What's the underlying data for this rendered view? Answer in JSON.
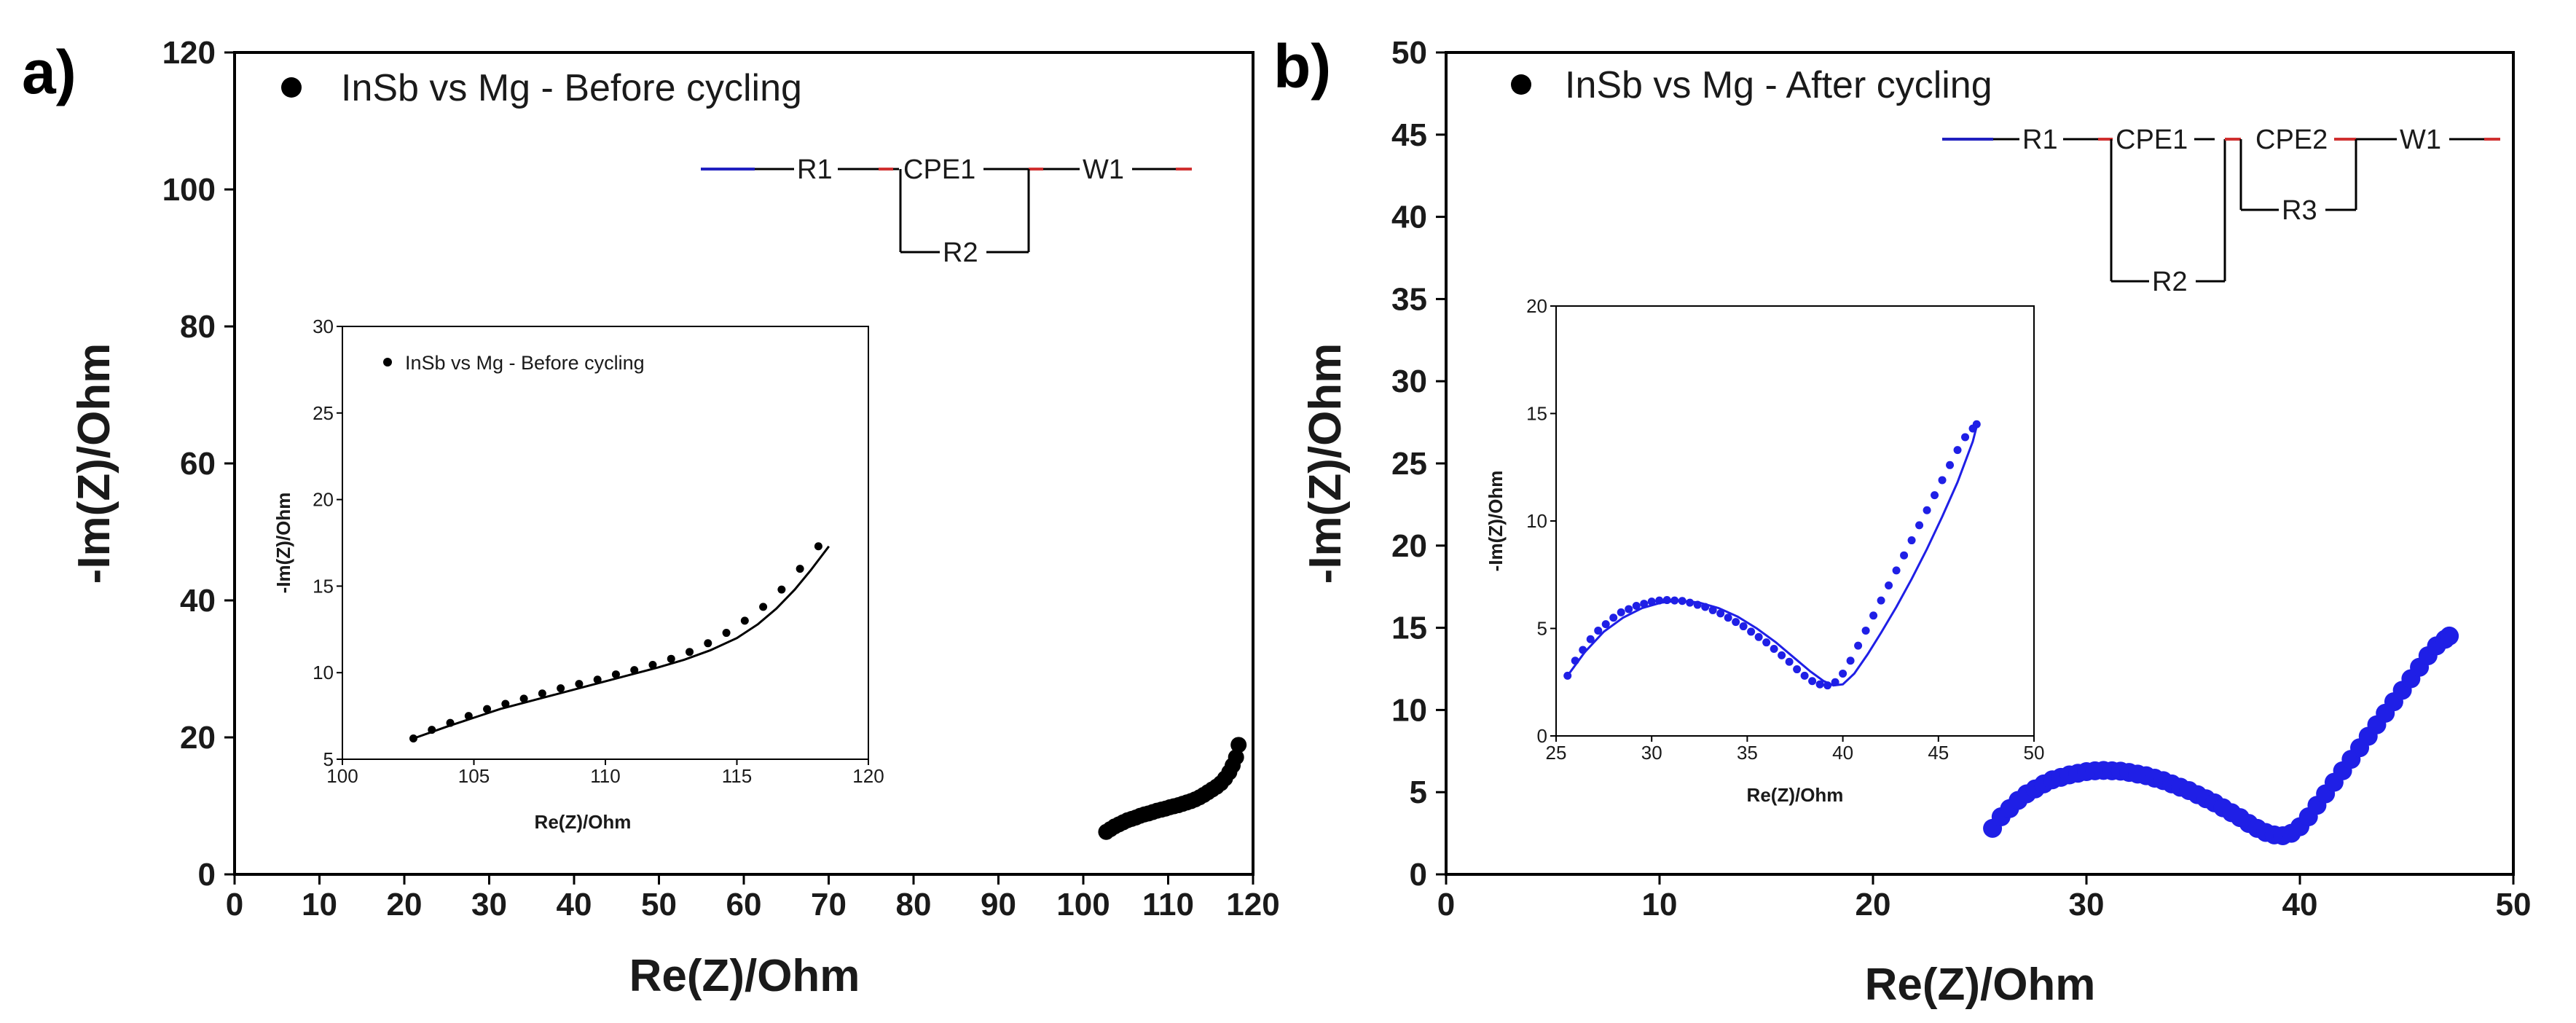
{
  "chart_data": [
    {
      "panel": "a)",
      "type": "scatter",
      "legend": "InSb vs Mg - Before cycling",
      "legend_position": "top-left",
      "xlabel": "Re(Z)/Ohm",
      "ylabel": "-Im(Z)/Ohm",
      "xlim": [
        0,
        120
      ],
      "ylim": [
        0,
        120
      ],
      "xticks": [
        0,
        10,
        20,
        30,
        40,
        50,
        60,
        70,
        80,
        90,
        100,
        110,
        120
      ],
      "yticks": [
        0,
        20,
        40,
        60,
        80,
        100,
        120
      ],
      "marker_color": "#000000",
      "circuit": [
        "R1",
        "CPE1",
        "W1",
        "R2"
      ],
      "series": [
        {
          "name": "data",
          "x": [
            102.7,
            103.2,
            103.7,
            104.2,
            104.7,
            105.2,
            105.7,
            106.2,
            106.7,
            107.2,
            107.7,
            108.2,
            108.7,
            109.2,
            109.7,
            110.2,
            110.7,
            111.2,
            111.7,
            112.2,
            112.7,
            113.2,
            113.7,
            114.2,
            114.7,
            115.2,
            115.7,
            116.2,
            116.7,
            117.2,
            117.6,
            118.0,
            118.3
          ],
          "y": [
            6.2,
            6.6,
            7.0,
            7.3,
            7.6,
            7.9,
            8.1,
            8.3,
            8.55,
            8.75,
            8.9,
            9.1,
            9.3,
            9.45,
            9.6,
            9.8,
            9.95,
            10.1,
            10.3,
            10.5,
            10.7,
            10.95,
            11.25,
            11.6,
            12.0,
            12.4,
            12.8,
            13.3,
            14.0,
            14.9,
            15.9,
            17.1,
            18.9
          ]
        }
      ],
      "inset": {
        "legend": "InSb vs Mg - Before cycling",
        "xlabel": "Re(Z)/Ohm",
        "ylabel": "-Im(Z)/Ohm",
        "xlim": [
          100,
          120
        ],
        "ylim": [
          5,
          30
        ],
        "xticks": [
          100,
          105,
          110,
          115,
          120
        ],
        "yticks": [
          5,
          10,
          15,
          20,
          25,
          30
        ],
        "series": [
          {
            "name": "data",
            "x": [
              102.7,
              103.4,
              104.1,
              104.8,
              105.5,
              106.2,
              106.9,
              107.6,
              108.3,
              109.0,
              109.7,
              110.4,
              111.1,
              111.8,
              112.5,
              113.2,
              113.9,
              114.6,
              115.3,
              116.0,
              116.7,
              117.4,
              118.1
            ],
            "y": [
              6.2,
              6.7,
              7.1,
              7.5,
              7.9,
              8.2,
              8.5,
              8.8,
              9.1,
              9.35,
              9.6,
              9.9,
              10.15,
              10.45,
              10.8,
              11.2,
              11.7,
              12.3,
              13.0,
              13.8,
              14.8,
              16.0,
              17.3
            ]
          },
          {
            "name": "fit",
            "x": [
              102.7,
              104,
              105,
              106,
              107,
              108,
              109,
              110,
              111,
              112,
              113,
              114,
              115,
              115.8,
              116.5,
              117.2,
              117.8,
              118.5
            ],
            "y": [
              6.2,
              6.9,
              7.4,
              7.9,
              8.3,
              8.7,
              9.1,
              9.5,
              9.9,
              10.3,
              10.75,
              11.3,
              12.0,
              12.8,
              13.7,
              14.8,
              15.9,
              17.3
            ]
          }
        ]
      }
    },
    {
      "panel": "b)",
      "type": "scatter",
      "legend": "InSb vs Mg - After cycling",
      "legend_position": "top-left",
      "xlabel": "Re(Z)/Ohm",
      "ylabel": "-Im(Z)/Ohm",
      "xlim": [
        0,
        50
      ],
      "ylim": [
        0,
        50
      ],
      "xticks": [
        0,
        10,
        20,
        30,
        40,
        50
      ],
      "yticks": [
        0,
        5,
        10,
        15,
        20,
        25,
        30,
        35,
        40,
        45,
        50
      ],
      "marker_color": "#1f1fe6",
      "circuit": [
        "R1",
        "CPE1",
        "CPE2",
        "W1",
        "R3",
        "R2"
      ],
      "series": [
        {
          "name": "data",
          "x": [
            25.6,
            26.0,
            26.4,
            26.8,
            27.2,
            27.6,
            28.0,
            28.4,
            28.8,
            29.2,
            29.6,
            30.0,
            30.4,
            30.8,
            31.2,
            31.6,
            32.0,
            32.4,
            32.8,
            33.2,
            33.6,
            34.0,
            34.4,
            34.8,
            35.2,
            35.6,
            36.0,
            36.4,
            36.8,
            37.2,
            37.6,
            38.0,
            38.4,
            38.8,
            39.2,
            39.6,
            40.0,
            40.4,
            40.8,
            41.2,
            41.6,
            42.0,
            42.4,
            42.8,
            43.2,
            43.6,
            44.0,
            44.4,
            44.8,
            45.2,
            45.6,
            46.0,
            46.4,
            46.8,
            47.0
          ],
          "y": [
            2.8,
            3.5,
            4.0,
            4.5,
            4.9,
            5.2,
            5.5,
            5.75,
            5.9,
            6.05,
            6.15,
            6.25,
            6.3,
            6.32,
            6.3,
            6.28,
            6.2,
            6.1,
            6.0,
            5.85,
            5.7,
            5.5,
            5.3,
            5.1,
            4.85,
            4.6,
            4.35,
            4.05,
            3.75,
            3.45,
            3.1,
            2.8,
            2.55,
            2.4,
            2.35,
            2.5,
            2.9,
            3.5,
            4.2,
            4.9,
            5.6,
            6.3,
            7.0,
            7.7,
            8.4,
            9.1,
            9.8,
            10.5,
            11.2,
            11.9,
            12.6,
            13.3,
            13.9,
            14.3,
            14.5
          ]
        }
      ],
      "inset": {
        "xlabel": "Re(Z)/Ohm",
        "ylabel": "-Im(Z)/Ohm",
        "xlim": [
          25,
          50
        ],
        "ylim": [
          0,
          20
        ],
        "xticks": [
          25,
          30,
          35,
          40,
          45,
          50
        ],
        "yticks": [
          0,
          5,
          10,
          15,
          20
        ],
        "series": [
          {
            "name": "data",
            "x": [
              25.6,
              26.0,
              26.4,
              26.8,
              27.2,
              27.6,
              28.0,
              28.4,
              28.8,
              29.2,
              29.6,
              30.0,
              30.4,
              30.8,
              31.2,
              31.6,
              32.0,
              32.4,
              32.8,
              33.2,
              33.6,
              34.0,
              34.4,
              34.8,
              35.2,
              35.6,
              36.0,
              36.4,
              36.8,
              37.2,
              37.6,
              38.0,
              38.4,
              38.8,
              39.2,
              39.6,
              40.0,
              40.4,
              40.8,
              41.2,
              41.6,
              42.0,
              42.4,
              42.8,
              43.2,
              43.6,
              44.0,
              44.4,
              44.8,
              45.2,
              45.6,
              46.0,
              46.4,
              46.8,
              47.0
            ],
            "y": [
              2.8,
              3.5,
              4.0,
              4.5,
              4.9,
              5.2,
              5.5,
              5.75,
              5.9,
              6.05,
              6.15,
              6.25,
              6.3,
              6.32,
              6.3,
              6.28,
              6.2,
              6.1,
              6.0,
              5.85,
              5.7,
              5.5,
              5.3,
              5.1,
              4.85,
              4.6,
              4.35,
              4.05,
              3.75,
              3.45,
              3.1,
              2.8,
              2.55,
              2.4,
              2.35,
              2.5,
              2.9,
              3.5,
              4.2,
              4.9,
              5.6,
              6.3,
              7.0,
              7.7,
              8.4,
              9.1,
              9.8,
              10.5,
              11.2,
              11.9,
              12.6,
              13.3,
              13.9,
              14.3,
              14.5
            ]
          },
          {
            "name": "fit",
            "x": [
              25.6,
              26.5,
              27.5,
              28.5,
              29.5,
              30.5,
              31.5,
              32.5,
              33.5,
              34.5,
              35.5,
              36.5,
              37.5,
              38.3,
              39.0,
              39.5,
              40.0,
              40.6,
              41.3,
              42.0,
              42.8,
              43.6,
              44.4,
              45.2,
              46.0,
              46.8,
              47.0
            ],
            "y": [
              2.8,
              3.9,
              4.85,
              5.5,
              5.95,
              6.2,
              6.3,
              6.2,
              5.95,
              5.55,
              5.0,
              4.35,
              3.6,
              3.0,
              2.55,
              2.35,
              2.4,
              2.9,
              3.8,
              4.8,
              6.0,
              7.3,
              8.7,
              10.2,
              11.8,
              13.7,
              14.4
            ]
          }
        ]
      }
    }
  ]
}
